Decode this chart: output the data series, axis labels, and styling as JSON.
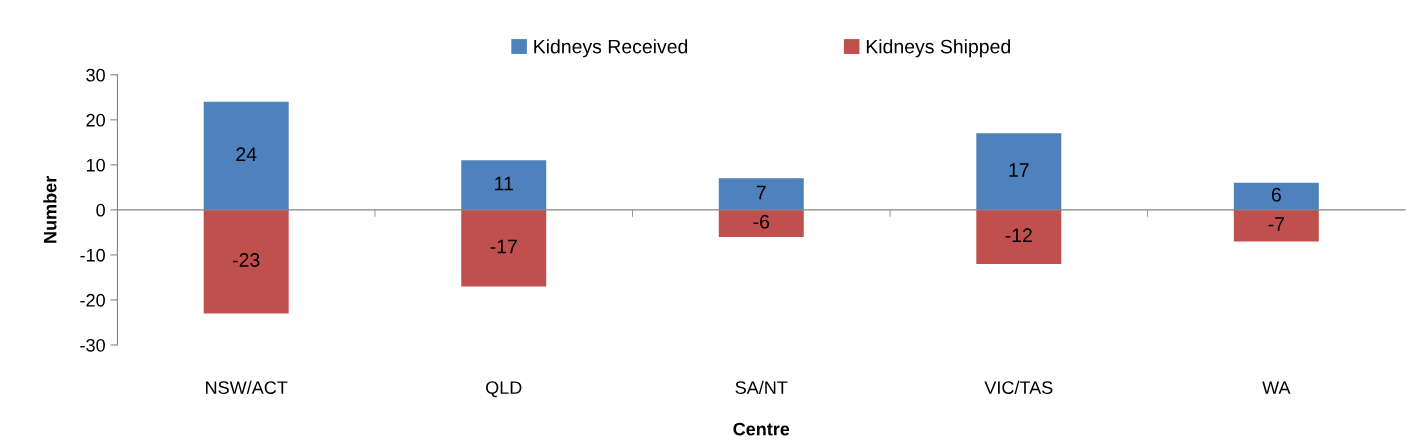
{
  "chart_data": {
    "type": "bar",
    "stacked": true,
    "xlabel": "Centre",
    "ylabel": "Number",
    "categories": [
      "NSW/ACT",
      "QLD",
      "SA/NT",
      "VIC/TAS",
      "WA"
    ],
    "series": [
      {
        "name": "Kidneys Received",
        "color": "#4f81bd",
        "values": [
          24,
          11,
          7,
          17,
          6
        ]
      },
      {
        "name": "Kidneys Shipped",
        "color": "#c0504d",
        "values": [
          -23,
          -17,
          -6,
          -12,
          -7
        ]
      }
    ],
    "ylim": [
      -30,
      30
    ],
    "yticks": [
      -30,
      -20,
      -10,
      0,
      10,
      20,
      30
    ],
    "data_labels": true,
    "legend": "top"
  }
}
